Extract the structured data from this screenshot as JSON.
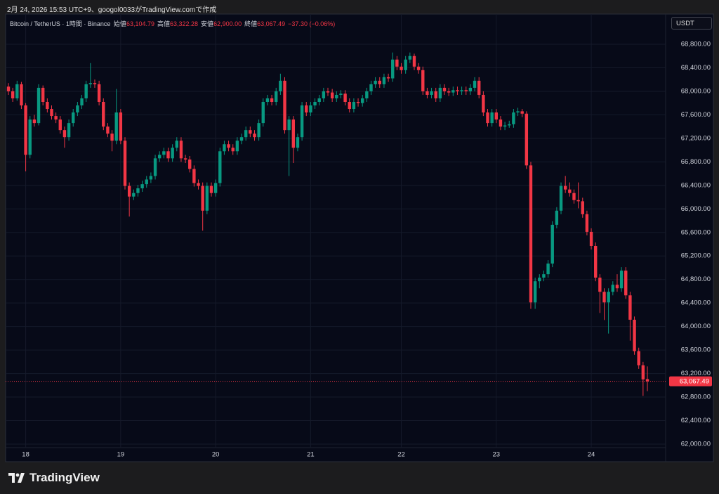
{
  "caption": "2月 24, 2026 15:53 UTC+9、googol0033がTradingView.comで作成",
  "brand": "TradingView",
  "chart_data": {
    "type": "candlestick",
    "header": {
      "symbol": "Bitcoin / TetherUS · 1時間 · Binance",
      "open_label": "始値",
      "open": "63,104.79",
      "high_label": "高値",
      "high": "63,322.28",
      "low_label": "安値",
      "low": "62,900.00",
      "close_label": "終値",
      "close": "63,067.49",
      "change": "−37.30 (−0.06%)"
    },
    "currency": "USDT",
    "last_price_label": "63,067.49",
    "colors": {
      "up": "#089981",
      "down": "#f23645"
    },
    "grid": true,
    "ylim": [
      61940,
      69290
    ],
    "yticks": [
      {
        "value": 62000,
        "label": "62,000.00"
      },
      {
        "value": 62400,
        "label": "62,400.00"
      },
      {
        "value": 62800,
        "label": "62,800.00"
      },
      {
        "value": 63200,
        "label": "63,200.00"
      },
      {
        "value": 63600,
        "label": "63,600.00"
      },
      {
        "value": 64000,
        "label": "64,000.00"
      },
      {
        "value": 64400,
        "label": "64,400.00"
      },
      {
        "value": 64800,
        "label": "64,800.00"
      },
      {
        "value": 65200,
        "label": "65,200.00"
      },
      {
        "value": 65600,
        "label": "65,600.00"
      },
      {
        "value": 66000,
        "label": "66,000.00"
      },
      {
        "value": 66400,
        "label": "66,400.00"
      },
      {
        "value": 66800,
        "label": "66,800.00"
      },
      {
        "value": 67200,
        "label": "67,200.00"
      },
      {
        "value": 67600,
        "label": "67,600.00"
      },
      {
        "value": 68000,
        "label": "68,000.00"
      },
      {
        "value": 68400,
        "label": "68,400.00"
      },
      {
        "value": 68800,
        "label": "68,800.00"
      }
    ],
    "categories": [
      null,
      null,
      null,
      null,
      "18",
      null,
      null,
      null,
      null,
      null,
      null,
      null,
      null,
      null,
      null,
      null,
      null,
      null,
      null,
      null,
      null,
      null,
      null,
      null,
      null,
      null,
      "19",
      null,
      null,
      null,
      null,
      null,
      null,
      null,
      null,
      null,
      null,
      null,
      null,
      null,
      null,
      null,
      null,
      null,
      null,
      null,
      null,
      null,
      "20",
      null,
      null,
      null,
      null,
      null,
      null,
      null,
      null,
      null,
      null,
      null,
      null,
      null,
      null,
      null,
      null,
      null,
      null,
      null,
      null,
      null,
      "21",
      null,
      null,
      null,
      null,
      null,
      null,
      null,
      null,
      null,
      null,
      null,
      null,
      null,
      null,
      null,
      null,
      null,
      null,
      null,
      null,
      "22",
      null,
      null,
      null,
      null,
      null,
      null,
      null,
      null,
      null,
      null,
      null,
      null,
      null,
      null,
      null,
      null,
      null,
      null,
      null,
      null,
      null,
      "23",
      null,
      null,
      null,
      null,
      null,
      null,
      null,
      null,
      null,
      null,
      null,
      null,
      null,
      null,
      null,
      null,
      null,
      null,
      null,
      null,
      null,
      "24",
      null,
      null,
      null,
      null,
      null,
      null,
      null,
      null,
      null,
      null,
      null,
      null,
      null
    ],
    "open": [
      68080,
      68000,
      67880,
      68120,
      67760,
      66920,
      67520,
      67460,
      68060,
      67820,
      67700,
      67580,
      67520,
      67340,
      67220,
      67460,
      67640,
      67760,
      67880,
      68120,
      68140,
      68120,
      67820,
      67400,
      67280,
      67160,
      67640,
      67160,
      66390,
      66210,
      66270,
      66350,
      66420,
      66500,
      66560,
      66860,
      66920,
      66980,
      66860,
      67040,
      67160,
      66860,
      66840,
      66680,
      66440,
      66390,
      65970,
      66390,
      66270,
      66440,
      66980,
      67100,
      67040,
      66980,
      67160,
      67220,
      67340,
      67280,
      67220,
      67460,
      67820,
      67880,
      67820,
      68000,
      68180,
      67340,
      67520,
      67040,
      67220,
      67760,
      67640,
      67760,
      67820,
      67880,
      68000,
      67980,
      67880,
      67940,
      67960,
      67820,
      67700,
      67820,
      67800,
      67880,
      68000,
      68120,
      68180,
      68120,
      68240,
      68220,
      68540,
      68420,
      68360,
      68540,
      68600,
      68420,
      68360,
      68000,
      67940,
      68000,
      67880,
      68060,
      68000,
      67980,
      68020,
      68000,
      68020,
      68000,
      68060,
      68180,
      67940,
      67640,
      67460,
      67640,
      67520,
      67400,
      67420,
      67440,
      67640,
      67660,
      67620,
      66740,
      64410,
      64770,
      64830,
      64890,
      65070,
      65730,
      65970,
      66390,
      66330,
      66270,
      66150,
      66130,
      65910,
      65610,
      65370,
      64830,
      64590,
      64410,
      64590,
      64710,
      64650,
      64950,
      64530,
      64115,
      63580,
      63340,
      63104.79
    ],
    "high": [
      68140,
      68060,
      68180,
      68160,
      67800,
      67580,
      67600,
      68120,
      68100,
      67880,
      67760,
      67640,
      67580,
      67400,
      67520,
      67700,
      67820,
      67940,
      68180,
      68480,
      68200,
      68180,
      67880,
      67460,
      67340,
      68040,
      67700,
      67220,
      66450,
      66330,
      66410,
      66480,
      66560,
      66620,
      66920,
      66980,
      67040,
      67040,
      67100,
      67220,
      67220,
      66920,
      66900,
      66740,
      66500,
      66450,
      66450,
      66450,
      66500,
      67040,
      67160,
      67160,
      67100,
      67220,
      67280,
      67400,
      67400,
      67340,
      67520,
      67880,
      67940,
      67940,
      68060,
      68300,
      68240,
      67580,
      67580,
      67280,
      67820,
      67820,
      67820,
      67880,
      67940,
      68060,
      68060,
      68040,
      68000,
      68020,
      68020,
      67880,
      67880,
      67880,
      67940,
      68060,
      68180,
      68240,
      68240,
      68300,
      68300,
      68660,
      68600,
      68480,
      68600,
      68660,
      68640,
      68480,
      68420,
      68060,
      68060,
      68060,
      68120,
      68120,
      68060,
      68080,
      68080,
      68080,
      68080,
      68120,
      68240,
      68240,
      68000,
      67700,
      67700,
      67700,
      67580,
      67480,
      67500,
      67700,
      67720,
      67700,
      67660,
      66800,
      64830,
      64890,
      64950,
      65130,
      65790,
      66030,
      66450,
      66560,
      66450,
      66330,
      66450,
      66190,
      65970,
      65670,
      65430,
      64890,
      64650,
      64650,
      64770,
      64890,
      65010,
      65010,
      64590,
      64170,
      63640,
      63400,
      63322.28
    ],
    "low": [
      67940,
      67820,
      67840,
      67700,
      66640,
      66860,
      67400,
      67420,
      67760,
      67640,
      67520,
      67460,
      67280,
      67040,
      67160,
      67400,
      67580,
      67700,
      67820,
      68060,
      68060,
      67760,
      67340,
      67220,
      66980,
      67100,
      67100,
      66330,
      65870,
      66150,
      66210,
      66290,
      66360,
      66440,
      66500,
      66800,
      66860,
      66800,
      66800,
      66980,
      66800,
      66780,
      66620,
      66380,
      66330,
      65630,
      65910,
      66210,
      66210,
      66380,
      66920,
      66980,
      66920,
      66920,
      67100,
      67160,
      67220,
      67160,
      67160,
      67400,
      67760,
      67760,
      67760,
      67940,
      67280,
      66560,
      66780,
      66980,
      67160,
      67580,
      67580,
      67700,
      67760,
      67820,
      67920,
      67820,
      67820,
      67880,
      67760,
      67640,
      67640,
      67740,
      67740,
      67820,
      67940,
      68060,
      68060,
      68060,
      68160,
      68160,
      68360,
      68300,
      68300,
      68480,
      68360,
      68300,
      67940,
      67880,
      67880,
      67820,
      67820,
      67940,
      67920,
      67920,
      67940,
      67940,
      67940,
      67940,
      68000,
      67880,
      67580,
      67400,
      67400,
      67460,
      67340,
      67340,
      67380,
      67380,
      67580,
      67560,
      66680,
      64300,
      64300,
      64650,
      64770,
      64830,
      65010,
      65670,
      65910,
      66270,
      66210,
      66090,
      66010,
      65850,
      65550,
      65310,
      64770,
      64230,
      64110,
      63880,
      64530,
      64590,
      64590,
      64470,
      63760,
      63520,
      63280,
      62820,
      62900
    ],
    "close": [
      68000,
      67880,
      68120,
      67760,
      66920,
      67520,
      67460,
      68060,
      67820,
      67700,
      67580,
      67520,
      67340,
      67220,
      67460,
      67640,
      67760,
      67880,
      68120,
      68140,
      68120,
      67820,
      67400,
      67280,
      67160,
      67640,
      67160,
      66390,
      66210,
      66270,
      66350,
      66420,
      66500,
      66560,
      66860,
      66920,
      66980,
      66860,
      67040,
      67160,
      66860,
      66840,
      66680,
      66440,
      66390,
      65970,
      66390,
      66270,
      66440,
      66980,
      67100,
      67040,
      66980,
      67160,
      67220,
      67340,
      67280,
      67220,
      67460,
      67820,
      67880,
      67820,
      68000,
      68180,
      67340,
      67520,
      67040,
      67220,
      67760,
      67640,
      67760,
      67820,
      67880,
      68000,
      67980,
      67880,
      67940,
      67960,
      67820,
      67700,
      67820,
      67800,
      67880,
      68000,
      68120,
      68180,
      68120,
      68240,
      68220,
      68540,
      68420,
      68360,
      68540,
      68600,
      68420,
      68360,
      68000,
      67940,
      68000,
      67880,
      68060,
      68000,
      67980,
      68020,
      68000,
      68020,
      68000,
      68060,
      68180,
      67940,
      67640,
      67460,
      67640,
      67520,
      67400,
      67420,
      67440,
      67640,
      67660,
      67620,
      66740,
      64410,
      64770,
      64830,
      64890,
      65070,
      65730,
      65970,
      66390,
      66330,
      66270,
      66150,
      66130,
      65910,
      65610,
      65370,
      64830,
      64590,
      64410,
      64590,
      64710,
      64650,
      64950,
      64530,
      64115,
      63580,
      63340,
      63100,
      63067.49
    ]
  }
}
